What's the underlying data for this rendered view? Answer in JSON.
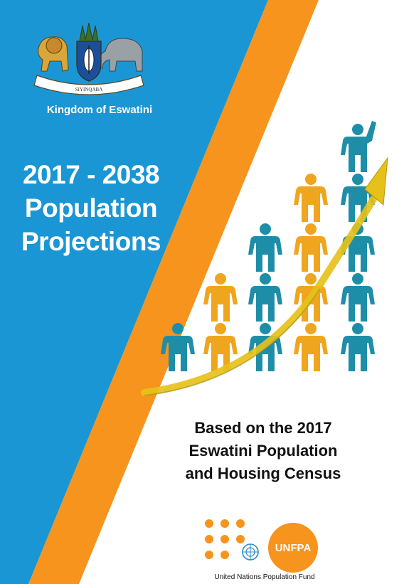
{
  "cover": {
    "emblem_motto": "SIYINQABA",
    "kingdom": "Kingdom of Eswatini",
    "title_lines": [
      "2017 - 2038",
      "Population",
      "Projections"
    ],
    "subtitle_lines": [
      "Based on the 2017",
      "Eswatini Population",
      "and Housing Census"
    ]
  },
  "logo": {
    "acronym": "UNFPA",
    "name": "United Nations Population Fund"
  },
  "colors": {
    "blue": "#1a96d4",
    "orange": "#f7941d",
    "teal_figure": "#1e8ea8",
    "gold_figure": "#f0a51f",
    "arrow": "#e6c11a"
  },
  "icons": [
    "coat-of-arms-icon",
    "rising-population-figures-icon",
    "growth-arrow-icon",
    "un-emblem-icon"
  ]
}
